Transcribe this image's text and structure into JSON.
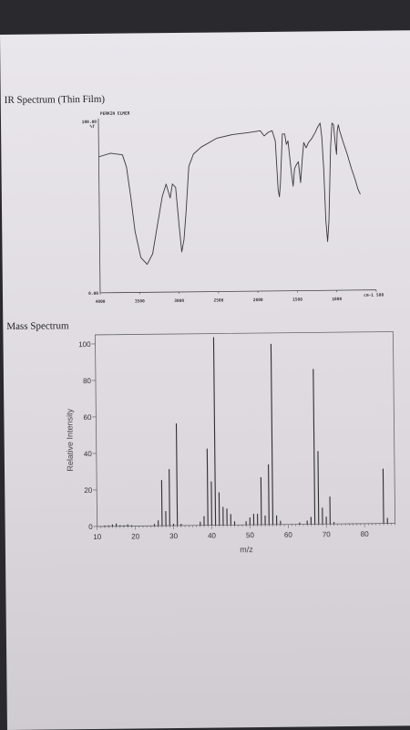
{
  "ir_section": {
    "heading": "IR Spectrum (Thin Film)"
  },
  "ms_section": {
    "heading": "Mass Spectrum"
  },
  "chart_data": [
    {
      "type": "line",
      "title": "IR Spectrum (Thin Film)",
      "header_small": "PERKIN ELMER",
      "y_top_label": "100.00",
      "y_top_sub": "%T",
      "y_bottom_label": "0.00",
      "x_unit": "cm-1",
      "x_ticks": [
        "4000",
        "3500",
        "3000",
        "2500",
        "2000",
        "1500",
        "1000",
        "500"
      ],
      "x_tick_values": [
        4000,
        3500,
        3000,
        2500,
        2000,
        1500,
        1000,
        500
      ],
      "xlim": [
        4000,
        500
      ],
      "ylim": [
        0,
        100
      ],
      "points": [
        [
          4000,
          78
        ],
        [
          3850,
          80
        ],
        [
          3700,
          79
        ],
        [
          3650,
          72
        ],
        [
          3600,
          55
        ],
        [
          3550,
          35
        ],
        [
          3480,
          20
        ],
        [
          3400,
          16
        ],
        [
          3330,
          22
        ],
        [
          3260,
          40
        ],
        [
          3200,
          55
        ],
        [
          3150,
          62
        ],
        [
          3100,
          54
        ],
        [
          3070,
          62
        ],
        [
          3030,
          60
        ],
        [
          2990,
          38
        ],
        [
          2960,
          23
        ],
        [
          2930,
          30
        ],
        [
          2900,
          46
        ],
        [
          2860,
          72
        ],
        [
          2800,
          79
        ],
        [
          2700,
          83
        ],
        [
          2500,
          88
        ],
        [
          2300,
          90
        ],
        [
          2100,
          91
        ],
        [
          1950,
          92
        ],
        [
          1900,
          89
        ],
        [
          1850,
          91
        ],
        [
          1800,
          92
        ],
        [
          1760,
          86
        ],
        [
          1730,
          58
        ],
        [
          1715,
          54
        ],
        [
          1700,
          62
        ],
        [
          1670,
          90
        ],
        [
          1640,
          90
        ],
        [
          1620,
          84
        ],
        [
          1600,
          86
        ],
        [
          1560,
          68
        ],
        [
          1540,
          60
        ],
        [
          1520,
          70
        ],
        [
          1500,
          72
        ],
        [
          1470,
          74
        ],
        [
          1445,
          62
        ],
        [
          1420,
          76
        ],
        [
          1400,
          85
        ],
        [
          1370,
          82
        ],
        [
          1340,
          85
        ],
        [
          1300,
          87
        ],
        [
          1250,
          91
        ],
        [
          1220,
          94
        ],
        [
          1190,
          96
        ],
        [
          1170,
          88
        ],
        [
          1150,
          70
        ],
        [
          1130,
          40
        ],
        [
          1110,
          28
        ],
        [
          1090,
          40
        ],
        [
          1060,
          82
        ],
        [
          1040,
          96
        ],
        [
          1020,
          95
        ],
        [
          1000,
          84
        ],
        [
          985,
          78
        ],
        [
          975,
          91
        ],
        [
          960,
          95
        ],
        [
          940,
          91
        ],
        [
          900,
          85
        ],
        [
          850,
          78
        ],
        [
          800,
          70
        ],
        [
          750,
          63
        ],
        [
          720,
          58
        ],
        [
          690,
          55
        ]
      ]
    },
    {
      "type": "bar",
      "title": "Mass Spectrum",
      "xlabel": "m/z",
      "ylabel": "Relative Intensity",
      "xlim": [
        10,
        88
      ],
      "ylim": [
        0,
        105
      ],
      "x_ticks": [
        10,
        20,
        30,
        40,
        50,
        60,
        70,
        80
      ],
      "y_ticks": [
        0,
        20,
        40,
        60,
        80,
        100
      ],
      "peaks": [
        {
          "x": 12,
          "y": 0.5
        },
        {
          "x": 13,
          "y": 0.5
        },
        {
          "x": 14,
          "y": 1
        },
        {
          "x": 15,
          "y": 1.5
        },
        {
          "x": 16,
          "y": 0.5
        },
        {
          "x": 17,
          "y": 0.5
        },
        {
          "x": 18,
          "y": 1
        },
        {
          "x": 19,
          "y": 0.5
        },
        {
          "x": 25,
          "y": 1
        },
        {
          "x": 26,
          "y": 3
        },
        {
          "x": 27,
          "y": 25
        },
        {
          "x": 28,
          "y": 8
        },
        {
          "x": 29,
          "y": 31
        },
        {
          "x": 30,
          "y": 1
        },
        {
          "x": 31,
          "y": 56
        },
        {
          "x": 32,
          "y": 1
        },
        {
          "x": 37,
          "y": 2
        },
        {
          "x": 38,
          "y": 5
        },
        {
          "x": 39,
          "y": 42
        },
        {
          "x": 40,
          "y": 24
        },
        {
          "x": 41,
          "y": 103
        },
        {
          "x": 42,
          "y": 18
        },
        {
          "x": 43,
          "y": 10
        },
        {
          "x": 44,
          "y": 9
        },
        {
          "x": 45,
          "y": 6
        },
        {
          "x": 46,
          "y": 2
        },
        {
          "x": 49,
          "y": 2
        },
        {
          "x": 50,
          "y": 4
        },
        {
          "x": 51,
          "y": 6
        },
        {
          "x": 52,
          "y": 6
        },
        {
          "x": 53,
          "y": 26
        },
        {
          "x": 54,
          "y": 5
        },
        {
          "x": 55,
          "y": 33
        },
        {
          "x": 56,
          "y": 99
        },
        {
          "x": 57,
          "y": 5
        },
        {
          "x": 58,
          "y": 2
        },
        {
          "x": 63,
          "y": 1
        },
        {
          "x": 65,
          "y": 2
        },
        {
          "x": 66,
          "y": 4
        },
        {
          "x": 67,
          "y": 85
        },
        {
          "x": 68,
          "y": 40
        },
        {
          "x": 69,
          "y": 9
        },
        {
          "x": 70,
          "y": 4
        },
        {
          "x": 71,
          "y": 15
        },
        {
          "x": 72,
          "y": 1
        },
        {
          "x": 85,
          "y": 30
        },
        {
          "x": 86,
          "y": 3
        }
      ]
    }
  ]
}
